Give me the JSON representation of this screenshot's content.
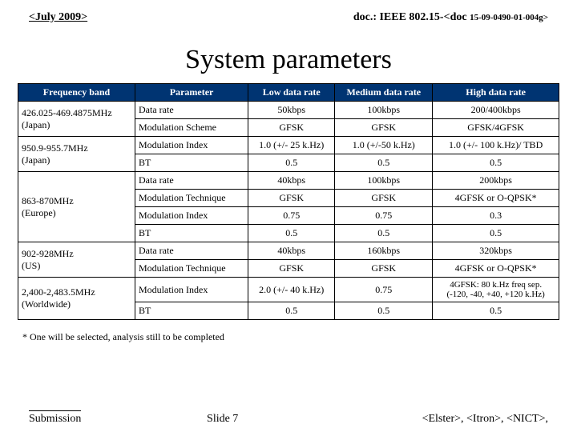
{
  "header": {
    "left": "<July 2009>",
    "right_prefix": "doc.: IEEE 802.15-<doc ",
    "right_small": "15-09-0490-01-004g>"
  },
  "title": "System parameters",
  "columns": [
    "Frequency band",
    "Parameter",
    "Low data rate",
    "Medium data rate",
    "High data rate"
  ],
  "freq": {
    "0": "426.025-469.4875MHz\n(Japan)",
    "1": "950.9-955.7MHz\n(Japan)",
    "2": "863-870MHz\n(Europe)",
    "3": "902-928MHz\n(US)",
    "4": "2,400-2,483.5MHz\n(Worldwide)"
  },
  "rows": {
    "0": {
      "p": "Data rate",
      "l": "50kbps",
      "m": "100kbps",
      "h": "200/400kbps"
    },
    "1": {
      "p": "Modulation Scheme",
      "l": "GFSK",
      "m": "GFSK",
      "h": "GFSK/4GFSK"
    },
    "2": {
      "p": "Modulation Index",
      "l": "1.0 (+/- 25 k.Hz)",
      "m": "1.0 (+/-50 k.Hz)",
      "h": "1.0 (+/- 100 k.Hz)/ TBD"
    },
    "3": {
      "p": "BT",
      "l": "0.5",
      "m": "0.5",
      "h": "0.5"
    },
    "4": {
      "p": "Data rate",
      "l": "40kbps",
      "m": "100kbps",
      "h": "200kbps"
    },
    "5": {
      "p": "Modulation Technique",
      "l": "GFSK",
      "m": "GFSK",
      "h": "4GFSK or O-QPSK*"
    },
    "6": {
      "p": "Modulation Index",
      "l": "0.75",
      "m": "0.75",
      "h": "0.3"
    },
    "7": {
      "p": "BT",
      "l": "0.5",
      "m": "0.5",
      "h": "0.5"
    },
    "8": {
      "p": "Data rate",
      "l": "40kbps",
      "m": "160kbps",
      "h": "320kbps"
    },
    "9": {
      "p": "Modulation Technique",
      "l": "GFSK",
      "m": "GFSK",
      "h": "4GFSK or O-QPSK*"
    },
    "10": {
      "p": "Modulation Index",
      "l": "2.0 (+/- 40 k.Hz)",
      "m": "0.75",
      "h": "4GFSK: 80 k.Hz freq sep.\n(-120, -40, +40, +120 k.Hz)"
    },
    "11": {
      "p": "BT",
      "l": "0.5",
      "m": "0.5",
      "h": "0.5"
    }
  },
  "footnote": "* One will be selected, analysis still to be completed",
  "footer": {
    "submission": "Submission",
    "slide": "Slide 7",
    "right": "<Elster>, <Itron>, <NICT>,"
  }
}
